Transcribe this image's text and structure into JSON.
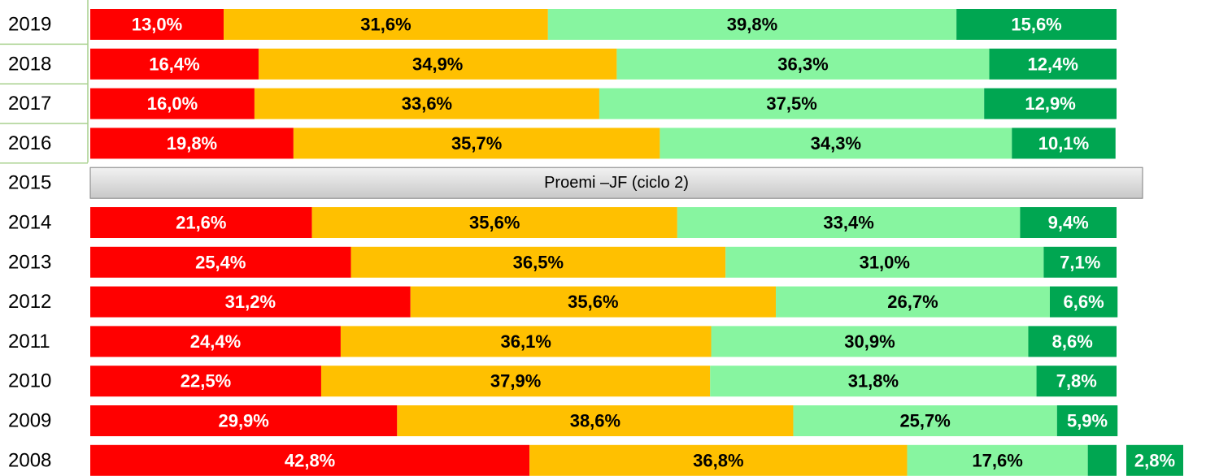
{
  "chart_data": {
    "type": "stacked-bar-horizontal",
    "categories": [
      "2019",
      "2018",
      "2017",
      "2016",
      "2015",
      "2014",
      "2013",
      "2012",
      "2011",
      "2010",
      "2009",
      "2008"
    ],
    "annotation": "Proemi –JF (ciclo 2)",
    "xlim": [
      0,
      100
    ],
    "series": [
      {
        "color": "#ff0000",
        "label_color": "#ffffff",
        "values": [
          13.0,
          16.4,
          16.0,
          19.8,
          null,
          21.6,
          25.4,
          31.2,
          24.4,
          22.5,
          29.9,
          42.8
        ],
        "value_labels": [
          "13,0%",
          "16,4%",
          "16,0%",
          "19,8%",
          null,
          "21,6%",
          "25,4%",
          "31,2%",
          "24,4%",
          "22,5%",
          "29,9%",
          "42,8%"
        ]
      },
      {
        "color": "#ffc000",
        "label_color": "#000000",
        "values": [
          31.6,
          34.9,
          33.6,
          35.7,
          null,
          35.6,
          36.5,
          35.6,
          36.1,
          37.9,
          38.6,
          36.8
        ],
        "value_labels": [
          "31,6%",
          "34,9%",
          "33,6%",
          "35,7%",
          null,
          "35,6%",
          "36,5%",
          "35,6%",
          "36,1%",
          "37,9%",
          "38,6%",
          "36,8%"
        ]
      },
      {
        "color": "#87f5a0",
        "label_color": "#000000",
        "values": [
          39.8,
          36.3,
          37.5,
          34.3,
          null,
          33.4,
          31.0,
          26.7,
          30.9,
          31.8,
          25.7,
          17.6
        ],
        "value_labels": [
          "39,8%",
          "36,3%",
          "37,5%",
          "34,3%",
          null,
          "33,4%",
          "31,0%",
          "26,7%",
          "30,9%",
          "31,8%",
          "25,7%",
          "17,6%"
        ]
      },
      {
        "color": "#00a651",
        "label_color": "#ffffff",
        "values": [
          15.6,
          12.4,
          12.9,
          10.1,
          null,
          9.4,
          7.1,
          6.6,
          8.6,
          7.8,
          5.9,
          2.8
        ],
        "value_labels": [
          "15,6%",
          "12,4%",
          "12,9%",
          "10,1%",
          null,
          "9,4%",
          "7,1%",
          "6,6%",
          "8,6%",
          "7,8%",
          "5,9%",
          "2,8%"
        ]
      }
    ]
  }
}
